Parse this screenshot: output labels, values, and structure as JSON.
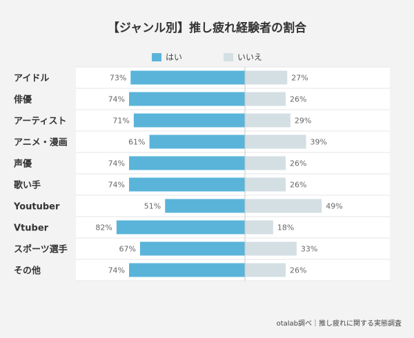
{
  "chart_data": {
    "type": "bar",
    "title": "【ジャンル別】推し疲れ経験者の割合",
    "categories": [
      "アイドル",
      "俳優",
      "アーティスト",
      "アニメ・漫画",
      "声優",
      "歌い手",
      "Youtuber",
      "Vtuber",
      "スポーツ選手",
      "その他"
    ],
    "series": [
      {
        "name": "はい",
        "values": [
          73,
          74,
          71,
          61,
          74,
          74,
          51,
          82,
          67,
          74
        ],
        "color": "#5ab4d9"
      },
      {
        "name": "いいえ",
        "values": [
          27,
          26,
          29,
          39,
          26,
          26,
          49,
          18,
          33,
          26
        ],
        "color": "#d4dfe3"
      }
    ],
    "value_suffix": "%",
    "legend_position": "top-center",
    "orientation": "horizontal-diverging"
  },
  "footer": "otalab調べ｜推し疲れに関する実態調査"
}
